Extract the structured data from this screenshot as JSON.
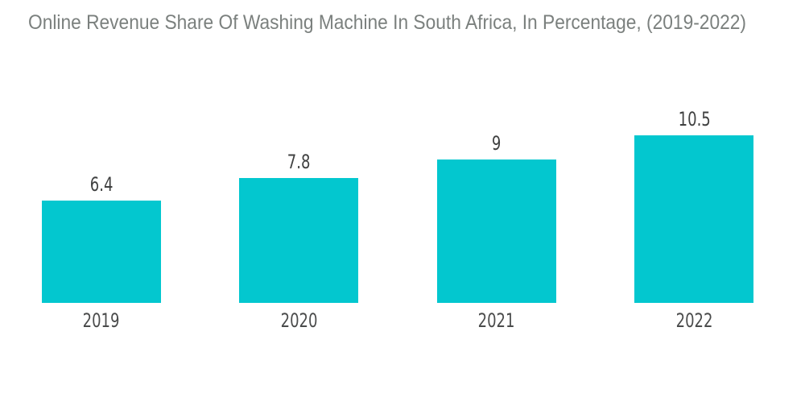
{
  "title": "Online Revenue Share Of Washing Machine In South Africa, In Percentage, (2019-2022)",
  "colors": {
    "bar": "#03C7CF",
    "title_text": "#7b807e",
    "value_text": "#3f4040",
    "year_text": "#4a4b4b",
    "background": "#ffffff"
  },
  "chart_data": {
    "type": "bar",
    "title": "Online Revenue Share Of Washing Machine In South Africa, In Percentage, (2019-2022)",
    "categories": [
      "2019",
      "2020",
      "2021",
      "2022"
    ],
    "values": [
      6.4,
      7.8,
      9,
      10.5
    ],
    "value_labels": [
      "6.4",
      "7.8",
      "9",
      "10.5"
    ],
    "xlabel": "",
    "ylabel": "",
    "ylim": [
      0,
      10.5
    ],
    "grid": false,
    "legend": false,
    "bar_color": "#03C7CF"
  }
}
